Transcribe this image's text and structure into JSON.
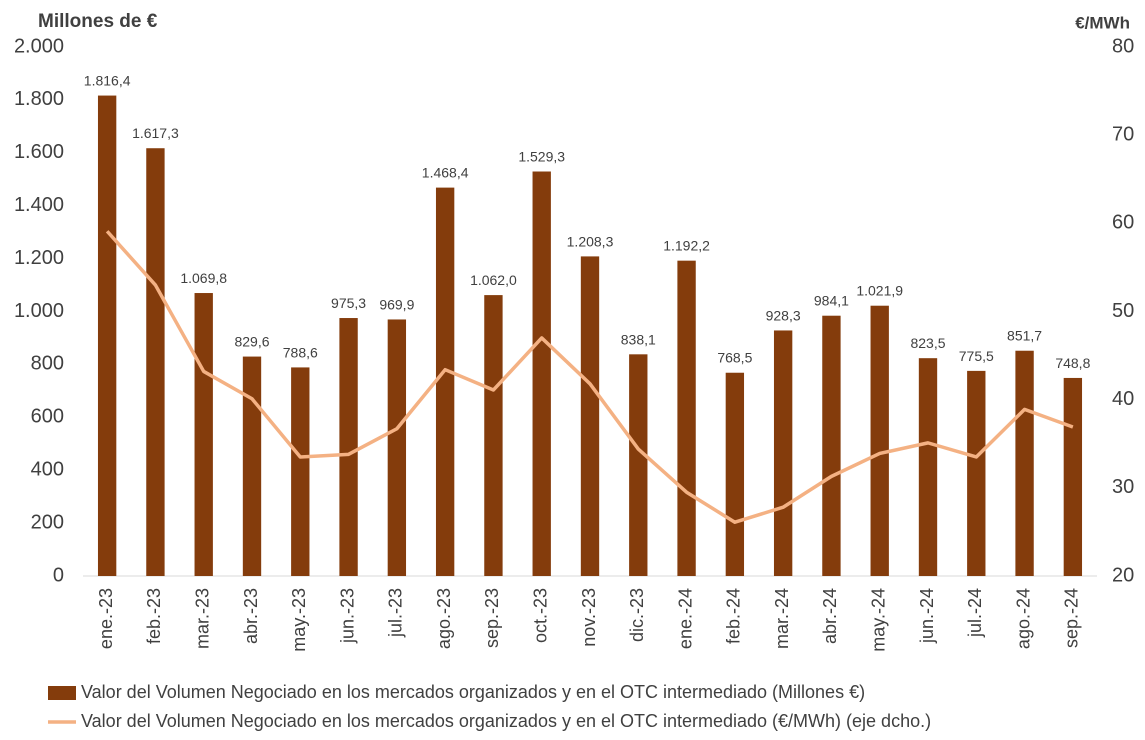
{
  "chart_data": {
    "type": "bar_line",
    "y_label": "Millones de €",
    "y2_label": "€/MWh",
    "categories": [
      "ene.-23",
      "feb.-23",
      "mar.-23",
      "abr.-23",
      "may.-23",
      "jun.-23",
      "jul.-23",
      "ago.-23",
      "sep.-23",
      "oct.-23",
      "nov.-23",
      "dic.-23",
      "ene.-24",
      "feb.-24",
      "mar.-24",
      "abr.-24",
      "may.-24",
      "jun.-24",
      "jul.-24",
      "ago.-24",
      "sep.-24"
    ],
    "series": [
      {
        "name": "Valor del Volumen Negociado en los mercados organizados y en el OTC intermediado (Millones €)",
        "type": "bar",
        "color": "#843c0c",
        "values": [
          1816.4,
          1617.3,
          1069.8,
          829.6,
          788.6,
          975.3,
          969.9,
          1468.4,
          1062.0,
          1529.3,
          1208.3,
          838.1,
          1192.2,
          768.5,
          928.3,
          984.1,
          1021.9,
          823.5,
          775.5,
          851.7,
          748.8
        ],
        "value_labels": [
          "1.816,4",
          "1.617,3",
          "1.069,8",
          "829,6",
          "788,6",
          "975,3",
          "969,9",
          "1.468,4",
          "1.062,0",
          "1.529,3",
          "1.208,3",
          "838,1",
          "1.192,2",
          "768,5",
          "928,3",
          "984,1",
          "1.021,9",
          "823,5",
          "775,5",
          "851,7",
          "748,8"
        ]
      },
      {
        "name": "Valor del Volumen Negociado en los mercados organizados y en el OTC intermediado (€/MWh) (eje dcho.)",
        "type": "line",
        "axis": "y2",
        "color": "#f4b183",
        "values": [
          59.1,
          53.0,
          43.2,
          40.1,
          33.5,
          33.8,
          36.7,
          43.4,
          41.1,
          47.0,
          41.8,
          34.4,
          29.5,
          26.1,
          27.8,
          31.3,
          33.9,
          35.1,
          33.5,
          38.9,
          36.9
        ]
      }
    ],
    "ylim": [
      0,
      2000
    ],
    "yticks": [
      0,
      200,
      400,
      600,
      800,
      {
        "value": 1000,
        "label": "1.000"
      },
      {
        "value": 1200,
        "label": "1.200"
      },
      {
        "value": 1400,
        "label": "1.400"
      },
      {
        "value": 1600,
        "label": "1.600"
      },
      {
        "value": 1800,
        "label": "1.800"
      },
      {
        "value": 2000,
        "label": "2.000"
      }
    ],
    "y2lim": [
      20,
      80
    ],
    "y2ticks": [
      20,
      30,
      40,
      50,
      60,
      70,
      80
    ],
    "grid": false,
    "legend": "bottom"
  }
}
